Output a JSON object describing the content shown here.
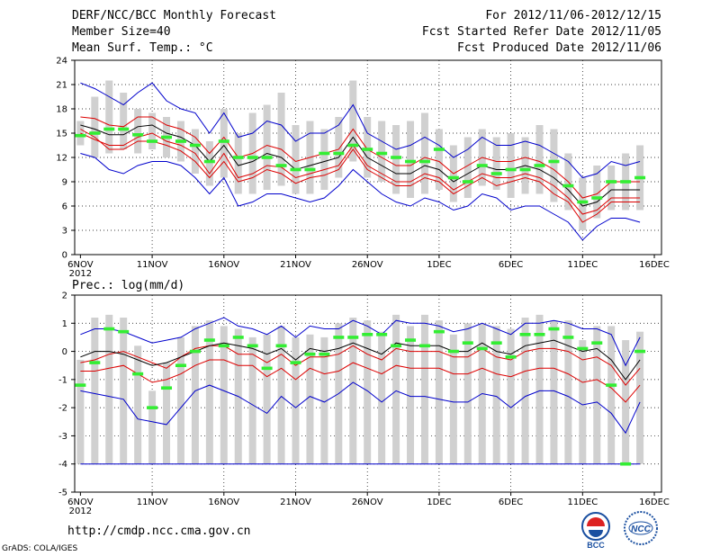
{
  "header": {
    "title": "DERF/NCC/BCC Monthly Forecast",
    "member_size": "Member Size=40",
    "variable": "Mean Surf. Temp.: °C",
    "forecast_period": "For 2012/11/06-2012/12/15",
    "refer_date": "Fcst Started Refer Date 2012/11/05",
    "produced_date": "Fcst Produced Date 2012/11/06"
  },
  "footer": {
    "url": "http://cmdp.ncc.cma.gov.cn",
    "grads": "GrADS: COLA/IGES",
    "logo_bcc": "BCC",
    "logo_ncc": "NCC"
  },
  "colors": {
    "max": "#0000cc",
    "band": "#dd0000",
    "mean": "#000000",
    "box": "#d0d0d0",
    "median": "#33ee33",
    "grid": "#000000"
  },
  "chart_data": [
    {
      "type": "line",
      "title": "Mean Surf. Temp.: °C",
      "ylim": [
        0,
        24
      ],
      "yticks": [
        0,
        3,
        6,
        9,
        12,
        15,
        18,
        21,
        24
      ],
      "xlabels": [
        {
          "day": 0,
          "label": "6NOV",
          "sub": "2012"
        },
        {
          "day": 5,
          "label": "11NOV"
        },
        {
          "day": 10,
          "label": "16NOV"
        },
        {
          "day": 15,
          "label": "21NOV"
        },
        {
          "day": 20,
          "label": "26NOV"
        },
        {
          "day": 25,
          "label": "1DEC"
        },
        {
          "day": 30,
          "label": "6DEC"
        },
        {
          "day": 35,
          "label": "11DEC"
        },
        {
          "day": 40,
          "label": "16DEC"
        }
      ],
      "series": {
        "max": [
          21.2,
          20.5,
          19.5,
          18.5,
          20.0,
          21.2,
          19.0,
          18.0,
          17.5,
          15.0,
          17.5,
          14.5,
          15.0,
          16.5,
          16.0,
          14.0,
          15.0,
          15.0,
          16.0,
          18.5,
          15.0,
          14.0,
          13.0,
          13.5,
          14.5,
          13.5,
          12.0,
          13.0,
          14.5,
          13.5,
          13.5,
          14.0,
          13.5,
          12.5,
          11.5,
          9.5,
          10.0,
          11.5,
          11.0,
          11.5
        ],
        "upper": [
          17.0,
          16.8,
          16.0,
          15.8,
          17.0,
          17.0,
          16.0,
          15.5,
          14.5,
          12.5,
          14.5,
          12.0,
          12.5,
          13.5,
          13.0,
          11.5,
          12.0,
          12.5,
          13.0,
          15.5,
          13.0,
          12.0,
          11.0,
          11.0,
          12.0,
          11.5,
          10.0,
          11.0,
          12.0,
          11.5,
          11.5,
          12.0,
          11.5,
          10.5,
          9.0,
          7.0,
          7.5,
          9.0,
          9.0,
          9.0
        ],
        "mean": [
          16.0,
          15.5,
          14.8,
          14.8,
          15.8,
          16.0,
          15.0,
          14.5,
          13.5,
          11.5,
          13.5,
          11.0,
          11.5,
          12.5,
          12.0,
          10.5,
          11.0,
          11.5,
          12.0,
          14.5,
          12.0,
          11.0,
          10.0,
          10.0,
          11.0,
          10.5,
          9.0,
          10.0,
          11.0,
          10.5,
          10.5,
          11.0,
          10.5,
          9.5,
          8.0,
          6.0,
          6.5,
          8.0,
          8.0,
          8.0
        ],
        "lower": [
          15.0,
          14.2,
          13.5,
          13.5,
          14.5,
          15.0,
          14.0,
          13.5,
          12.5,
          10.0,
          12.5,
          9.5,
          10.0,
          11.0,
          10.8,
          9.5,
          10.0,
          10.5,
          11.0,
          13.5,
          11.0,
          10.0,
          9.0,
          9.0,
          10.0,
          9.5,
          8.0,
          9.0,
          10.0,
          9.5,
          9.5,
          10.0,
          9.5,
          8.5,
          7.0,
          5.0,
          5.5,
          7.0,
          7.0,
          7.0
        ],
        "lowband": [
          15.5,
          14.5,
          13.0,
          13.0,
          14.0,
          14.0,
          13.5,
          12.8,
          11.5,
          9.5,
          11.5,
          9.0,
          9.5,
          10.5,
          10.0,
          8.8,
          9.5,
          9.8,
          10.5,
          13.0,
          10.5,
          9.5,
          8.5,
          8.5,
          9.5,
          9.0,
          7.5,
          8.5,
          9.5,
          8.5,
          9.0,
          9.5,
          9.0,
          7.5,
          6.5,
          4.0,
          5.0,
          6.5,
          6.5,
          6.5
        ],
        "min": [
          12.5,
          12.0,
          10.5,
          10.0,
          11.0,
          11.5,
          11.5,
          11.0,
          9.5,
          7.5,
          9.5,
          6.0,
          6.5,
          7.5,
          7.5,
          7.0,
          6.5,
          7.0,
          8.5,
          10.5,
          9.0,
          7.5,
          6.5,
          6.0,
          7.0,
          6.5,
          5.5,
          6.0,
          7.5,
          7.0,
          5.5,
          6.0,
          6.0,
          5.0,
          4.0,
          1.8,
          3.5,
          4.5,
          4.5,
          4.0
        ]
      },
      "median": [
        14.7,
        15.0,
        15.5,
        15.5,
        14.8,
        14.0,
        14.5,
        14.0,
        13.5,
        11.5,
        14.0,
        12.0,
        12.0,
        12.0,
        11.0,
        10.5,
        10.5,
        12.5,
        12.5,
        13.5,
        13.0,
        12.5,
        12.0,
        11.5,
        11.5,
        13.0,
        9.5,
        9.0,
        11.0,
        10.0,
        10.5,
        10.5,
        11.0,
        11.5,
        8.5,
        6.5,
        7.0,
        9.0,
        9.0,
        9.5
      ],
      "box_low": [
        13.5,
        12.0,
        12.5,
        13.0,
        12.5,
        13.0,
        12.0,
        11.5,
        10.0,
        8.5,
        9.5,
        7.5,
        7.5,
        8.0,
        8.5,
        7.5,
        7.5,
        8.0,
        9.5,
        11.5,
        9.5,
        9.0,
        7.5,
        7.0,
        7.5,
        8.0,
        6.5,
        7.0,
        8.5,
        8.0,
        7.0,
        7.5,
        7.5,
        6.5,
        5.5,
        3.0,
        4.5,
        5.5,
        5.5,
        5.5
      ],
      "box_high": [
        16.5,
        19.5,
        21.5,
        20.0,
        18.0,
        17.5,
        17.0,
        16.5,
        15.5,
        14.0,
        18.0,
        15.0,
        17.5,
        18.5,
        20.0,
        16.0,
        16.5,
        15.5,
        17.0,
        21.5,
        17.0,
        16.5,
        16.0,
        16.5,
        17.5,
        15.5,
        13.5,
        14.5,
        15.5,
        14.5,
        15.0,
        14.5,
        16.0,
        15.5,
        12.5,
        9.5,
        11.0,
        11.0,
        12.5,
        13.5
      ]
    },
    {
      "type": "line",
      "title": "Prec.: log(mm/d)",
      "ylim": [
        -5,
        2
      ],
      "yticks": [
        -5,
        -4,
        -3,
        -2,
        -1,
        0,
        1,
        2
      ],
      "xlabels": [
        {
          "day": 0,
          "label": "6NOV",
          "sub": "2012"
        },
        {
          "day": 5,
          "label": "11NOV"
        },
        {
          "day": 10,
          "label": "16NOV"
        },
        {
          "day": 15,
          "label": "21NOV"
        },
        {
          "day": 20,
          "label": "26NOV"
        },
        {
          "day": 25,
          "label": "1DEC"
        },
        {
          "day": 30,
          "label": "6DEC"
        },
        {
          "day": 35,
          "label": "11DEC"
        },
        {
          "day": 40,
          "label": "16DEC"
        }
      ],
      "series": {
        "max": [
          0.6,
          0.8,
          0.8,
          0.7,
          0.5,
          0.3,
          0.4,
          0.5,
          0.8,
          1.0,
          1.2,
          0.9,
          0.8,
          0.6,
          0.9,
          0.5,
          0.9,
          0.8,
          0.8,
          1.1,
          0.9,
          0.6,
          1.1,
          1.0,
          1.0,
          0.9,
          0.7,
          0.8,
          1.0,
          0.8,
          0.6,
          1.0,
          1.0,
          1.1,
          1.0,
          0.8,
          0.8,
          0.6,
          -0.5,
          0.5
        ],
        "upper": [
          -0.4,
          -0.3,
          -0.1,
          0.0,
          -0.2,
          -0.4,
          -0.6,
          -0.2,
          0.1,
          0.2,
          0.2,
          -0.1,
          -0.1,
          -0.4,
          -0.1,
          -0.5,
          -0.2,
          -0.2,
          -0.1,
          0.2,
          -0.1,
          -0.3,
          0.1,
          0.0,
          0.0,
          0.0,
          -0.2,
          -0.2,
          0.1,
          -0.2,
          -0.3,
          0.0,
          0.1,
          0.1,
          0.0,
          -0.3,
          -0.2,
          -0.5,
          -1.2,
          -0.6
        ],
        "mean": [
          -0.2,
          0.0,
          0.0,
          -0.1,
          -0.3,
          -0.5,
          -0.4,
          -0.2,
          0.0,
          0.2,
          0.3,
          0.2,
          0.1,
          -0.1,
          0.1,
          -0.3,
          0.1,
          0.0,
          0.1,
          0.3,
          0.1,
          -0.1,
          0.3,
          0.2,
          0.2,
          0.2,
          0.0,
          0.0,
          0.3,
          0.0,
          -0.1,
          0.2,
          0.3,
          0.4,
          0.2,
          0.0,
          0.1,
          -0.3,
          -1.0,
          -0.3
        ],
        "lower": [
          -0.7,
          -0.7,
          -0.6,
          -0.5,
          -0.8,
          -1.1,
          -1.0,
          -0.8,
          -0.5,
          -0.3,
          -0.3,
          -0.5,
          -0.5,
          -0.9,
          -0.6,
          -1.0,
          -0.6,
          -0.8,
          -0.7,
          -0.4,
          -0.6,
          -0.8,
          -0.5,
          -0.6,
          -0.6,
          -0.6,
          -0.8,
          -0.8,
          -0.6,
          -0.8,
          -0.9,
          -0.7,
          -0.6,
          -0.6,
          -0.8,
          -1.1,
          -1.0,
          -1.3,
          -1.8,
          -1.2
        ],
        "min": [
          -1.4,
          -1.5,
          -1.6,
          -1.7,
          -2.4,
          -2.5,
          -2.6,
          -2.0,
          -1.4,
          -1.2,
          -1.4,
          -1.6,
          -1.9,
          -2.2,
          -1.6,
          -2.0,
          -1.6,
          -1.8,
          -1.5,
          -1.1,
          -1.4,
          -1.8,
          -1.4,
          -1.6,
          -1.6,
          -1.7,
          -1.8,
          -1.8,
          -1.5,
          -1.6,
          -2.0,
          -1.6,
          -1.4,
          -1.4,
          -1.6,
          -1.9,
          -1.8,
          -2.2,
          -2.9,
          -1.8
        ]
      },
      "median": [
        -1.2,
        -0.4,
        0.8,
        0.7,
        -0.8,
        -2.0,
        -1.3,
        -0.5,
        0.0,
        0.4,
        0.2,
        0.5,
        0.2,
        -0.6,
        0.2,
        -0.4,
        -0.1,
        -0.1,
        0.5,
        0.5,
        0.6,
        0.6,
        0.2,
        0.4,
        0.2,
        0.7,
        0.0,
        0.3,
        0.1,
        0.3,
        -0.2,
        0.6,
        0.6,
        0.8,
        0.5,
        0.1,
        0.3,
        -1.2,
        -4.0,
        0.0
      ],
      "box_low": [
        -4.0,
        -4.0,
        -4.0,
        -4.0,
        -4.0,
        -4.0,
        -4.0,
        -4.0,
        -4.0,
        -4.0,
        -4.0,
        -4.0,
        -4.0,
        -4.0,
        -4.0,
        -4.0,
        -4.0,
        -4.0,
        -4.0,
        -4.0,
        -4.0,
        -4.0,
        -4.0,
        -4.0,
        -4.0,
        -4.0,
        -4.0,
        -4.0,
        -4.0,
        -4.0,
        -4.0,
        -4.0,
        -4.0,
        -4.0,
        -4.0,
        -4.0,
        -4.0,
        -4.0,
        -4.0,
        -4.0
      ],
      "box_high": [
        -0.3,
        1.2,
        1.3,
        1.2,
        0.2,
        -1.4,
        -0.4,
        0.5,
        0.9,
        1.1,
        0.9,
        0.8,
        0.5,
        0.6,
        0.9,
        0.5,
        0.6,
        0.5,
        1.0,
        1.2,
        1.1,
        0.7,
        1.3,
        0.9,
        1.3,
        1.1,
        0.6,
        1.0,
        1.0,
        0.9,
        0.8,
        1.2,
        1.3,
        1.1,
        1.1,
        0.4,
        0.9,
        0.9,
        0.4,
        0.7
      ],
      "floor": -4
    }
  ]
}
